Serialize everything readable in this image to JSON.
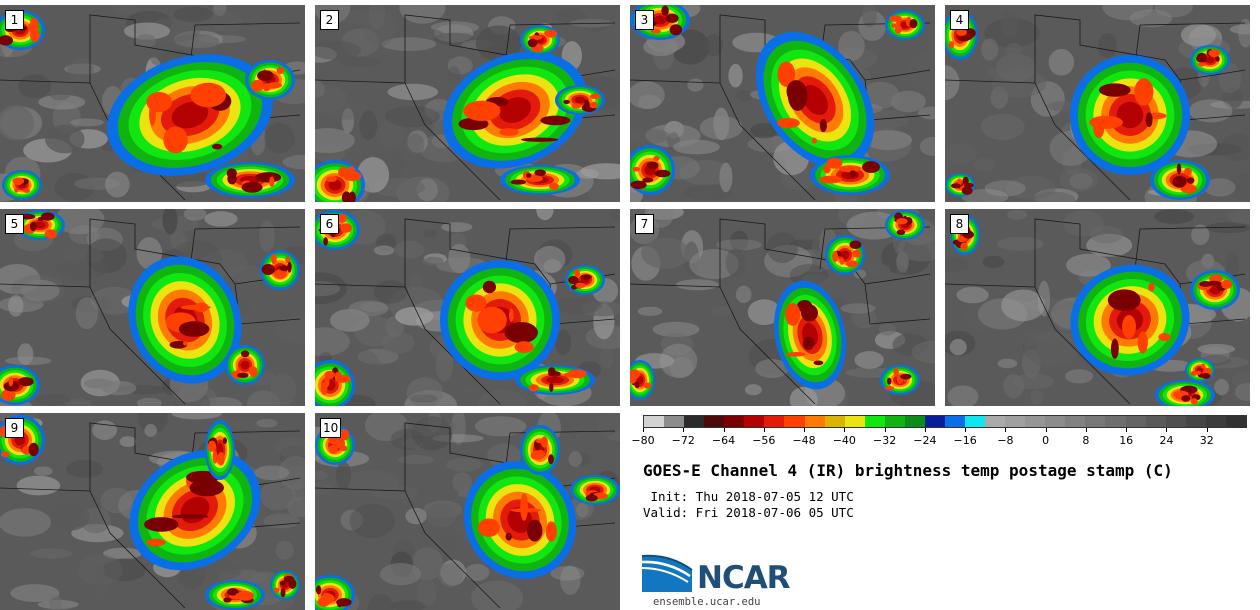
{
  "panels": [
    {
      "label": "1"
    },
    {
      "label": "2"
    },
    {
      "label": "3"
    },
    {
      "label": "4"
    },
    {
      "label": "5"
    },
    {
      "label": "6"
    },
    {
      "label": "7"
    },
    {
      "label": "8"
    },
    {
      "label": "9"
    },
    {
      "label": "10"
    }
  ],
  "colorbar": {
    "ticks": [
      "−80",
      "−72",
      "−64",
      "−56",
      "−48",
      "−40",
      "−32",
      "−24",
      "−16",
      "−8",
      "0",
      "8",
      "16",
      "24",
      "32"
    ],
    "range": [
      -80,
      40
    ],
    "colors": [
      "#d2d2d2",
      "#8c8c8c",
      "#2b2b2b",
      "#4d0a0a",
      "#7a0000",
      "#b30000",
      "#e41a0a",
      "#ff4000",
      "#ff7a00",
      "#d9b500",
      "#ede310",
      "#10e610",
      "#10b410",
      "#0c8c1a",
      "#0a1e9c",
      "#0a6ee6",
      "#10e6f0",
      "#aaaaaa",
      "#a0a0a0",
      "#969696",
      "#8c8c8c",
      "#828282",
      "#787878",
      "#6e6e6e",
      "#646464",
      "#5a5a5a",
      "#505050",
      "#464646",
      "#3c3c3c",
      "#323232"
    ]
  },
  "title": "GOES-E Channel 4 (IR) brightness temp postage stamp (C)",
  "init": " Init: Thu 2018-07-05 12 UTC",
  "valid": "Valid: Fri 2018-07-06 05 UTC",
  "logo": {
    "text": "NCAR",
    "website": "ensemble.ucar.edu",
    "color": "#1f4e79"
  }
}
